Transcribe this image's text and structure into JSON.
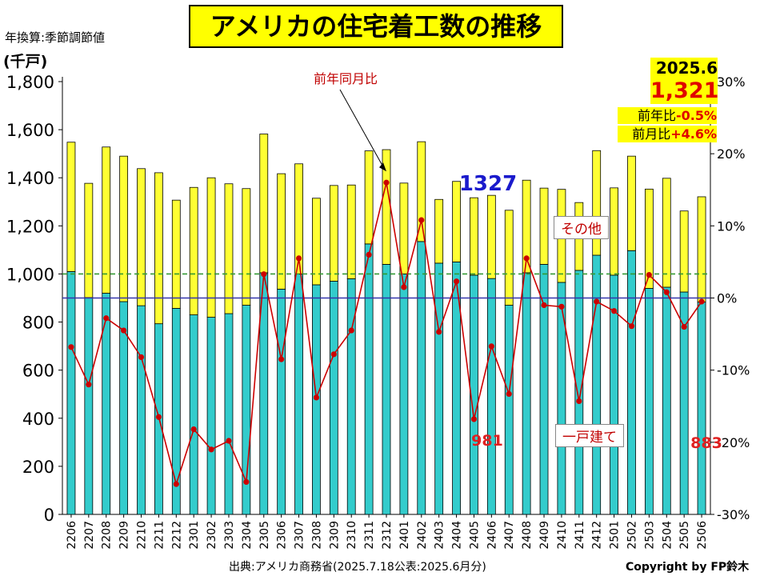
{
  "title": "アメリカの住宅着工数の推移",
  "note": "年換算:季節調節値",
  "unit": "(千戸)",
  "source": "出典:アメリカ商務省(2025.7.18公表:2025.6月分)",
  "copyright": "Copyright by FP鈴木",
  "callout": {
    "date": "2025.6",
    "value": "1,321",
    "yoy_label": "前年比",
    "yoy_value": "-0.5%",
    "mom_label": "前月比",
    "mom_value": "+4.6%"
  },
  "annotations": {
    "yoy_arrow_label": "前年同月比",
    "peak_1327": "1327",
    "single_981": "981",
    "single_883": "883",
    "other_box": "その他",
    "single_box": "一戸建て"
  },
  "colors": {
    "single_family": "#33cccc",
    "other": "#ffff33",
    "yoy_line": "#cc0000",
    "zero_line": "#3333aa",
    "ref_line_1000": "#339933",
    "callout_bg": "#ffff00"
  },
  "chart_data": {
    "type": "bar",
    "stacked": true,
    "categories": [
      "2206",
      "2207",
      "2208",
      "2209",
      "2210",
      "2211",
      "2212",
      "2301",
      "2302",
      "2303",
      "2304",
      "2305",
      "2306",
      "2307",
      "2308",
      "2309",
      "2310",
      "2311",
      "2312",
      "2401",
      "2402",
      "2403",
      "2404",
      "2405",
      "2406",
      "2407",
      "2408",
      "2409",
      "2410",
      "2411",
      "2412",
      "2501",
      "2502",
      "2503",
      "2504",
      "2505",
      "2506"
    ],
    "series": [
      {
        "name": "一戸建て",
        "values": [
          1010,
          902,
          920,
          885,
          868,
          793,
          857,
          830,
          820,
          835,
          870,
          1005,
          937,
          1000,
          955,
          970,
          980,
          1125,
          1040,
          1000,
          1135,
          1045,
          1050,
          995,
          981,
          870,
          1005,
          1040,
          965,
          1015,
          1078,
          995,
          1097,
          940,
          945,
          925,
          883
        ]
      },
      {
        "name": "その他",
        "values": [
          538,
          475,
          608,
          605,
          570,
          628,
          450,
          530,
          580,
          540,
          485,
          577,
          480,
          458,
          360,
          398,
          390,
          387,
          477,
          378,
          415,
          265,
          335,
          322,
          346,
          395,
          385,
          317,
          387,
          282,
          435,
          363,
          393,
          413,
          453,
          337,
          438
        ]
      },
      {
        "name": "前年同月比",
        "axis": "right",
        "type": "line",
        "values": [
          -6.8,
          -12.0,
          -2.8,
          -4.5,
          -8.2,
          -16.5,
          -25.8,
          -18.2,
          -21.0,
          -19.8,
          -25.5,
          3.3,
          -8.5,
          5.5,
          -13.8,
          -7.8,
          -4.5,
          6.0,
          16.0,
          1.5,
          10.8,
          -4.7,
          2.3,
          -16.8,
          -6.7,
          -13.3,
          5.5,
          -1.0,
          -1.2,
          -14.3,
          -0.5,
          -1.8,
          -3.9,
          3.2,
          0.8,
          -4.0,
          -0.5
        ]
      }
    ],
    "ylim": [
      0,
      1800
    ],
    "y_ticks": [
      "0",
      "200",
      "400",
      "600",
      "800",
      "1,000",
      "1,200",
      "1,400",
      "1,600",
      "1,800"
    ],
    "y2lim": [
      -30,
      30
    ],
    "y2_ticks": [
      "-30%",
      "-20%",
      "-10%",
      "0%",
      "10%",
      "20%",
      "30%"
    ],
    "ref_line": 1000,
    "grid": false
  }
}
